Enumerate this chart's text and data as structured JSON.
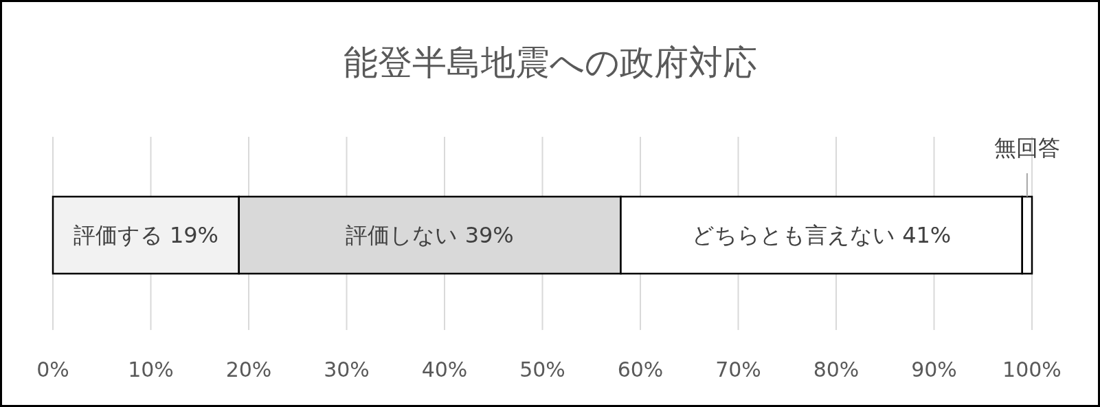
{
  "chart_data": {
    "type": "bar",
    "title": "能登半島地震への政府対応",
    "orientation": "horizontal",
    "stacked": true,
    "categories": [
      null
    ],
    "series": [
      {
        "name": "評価する",
        "color": "#f2f2f2",
        "values": [
          19
        ],
        "value_labels": [
          "19%"
        ]
      },
      {
        "name": "評価しない",
        "color": "#d9d9d9",
        "values": [
          39
        ],
        "value_labels": [
          "39%"
        ]
      },
      {
        "name": "どちらとも言えない",
        "color": "#ffffff",
        "values": [
          41
        ],
        "value_labels": [
          "41%"
        ]
      },
      {
        "name": "無回答",
        "color": "#ffffff",
        "values": [
          1
        ],
        "value_labels": [
          null
        ]
      }
    ],
    "xlim": [
      0,
      100
    ],
    "xticks": [
      {
        "value": 0,
        "label": "0%"
      },
      {
        "value": 10,
        "label": "10%"
      },
      {
        "value": 20,
        "label": "20%"
      },
      {
        "value": 30,
        "label": "30%"
      },
      {
        "value": 40,
        "label": "40%"
      },
      {
        "value": 50,
        "label": "50%"
      },
      {
        "value": 60,
        "label": "60%"
      },
      {
        "value": 70,
        "label": "70%"
      },
      {
        "value": 80,
        "label": "80%"
      },
      {
        "value": 90,
        "label": "90%"
      },
      {
        "value": 100,
        "label": "100%"
      }
    ],
    "grid": "x"
  }
}
